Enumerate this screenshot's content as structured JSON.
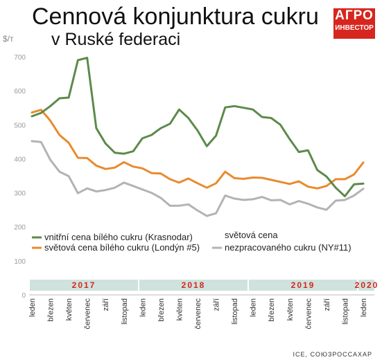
{
  "header": {
    "title": "Cennová konjunktura cukru",
    "subtitle": "v Ruské federaci",
    "unit": "$/т",
    "logo_top": "АГРО",
    "logo_bottom": "ИНВЕСТОР",
    "source": "ICE, СОЮЗРОССАХАР"
  },
  "colors": {
    "green": "#5c8a4a",
    "orange": "#e98a2d",
    "gray": "#b3b3b3",
    "year_band": "#cfe2dd",
    "year_text": "#d7261e"
  },
  "chart_data": {
    "type": "line",
    "title": "Cennová konjunktura cukru v Ruské federaci",
    "ylabel": "$/т",
    "ylim": [
      0,
      700
    ],
    "yticks": [
      0,
      100,
      200,
      300,
      400,
      500,
      600,
      700
    ],
    "x_labels": [
      "leden",
      "březen",
      "květen",
      "červenec",
      "září",
      "listopad",
      "leden",
      "březen",
      "květen",
      "červenec",
      "září",
      "listopad",
      "leden",
      "březen",
      "květen",
      "červenec",
      "září",
      "listopad",
      "leden"
    ],
    "years": [
      "2017",
      "2018",
      "2019",
      "2020"
    ],
    "grid": false,
    "series": [
      {
        "name": "vnitřní cena bílého cukru (Krasnodar)",
        "color": "#5c8a4a",
        "values": [
          525,
          535,
          555,
          578,
          580,
          690,
          697,
          490,
          445,
          418,
          415,
          422,
          460,
          470,
          490,
          503,
          545,
          520,
          483,
          437,
          468,
          551,
          555,
          550,
          545,
          523,
          520,
          500,
          458,
          420,
          425,
          367,
          348,
          315,
          290,
          325,
          327
        ]
      },
      {
        "name": "světová cena bílého cukru (Londýn #5)",
        "color": "#e98a2d",
        "values": [
          536,
          544,
          512,
          470,
          447,
          403,
          402,
          380,
          370,
          374,
          390,
          377,
          372,
          358,
          357,
          340,
          330,
          342,
          328,
          315,
          328,
          362,
          343,
          341,
          345,
          344,
          338,
          332,
          326,
          334,
          318,
          313,
          320,
          340,
          340,
          354,
          389
        ]
      },
      {
        "name": "světová cena nezpracovaného cukru (NY#11)",
        "color": "#b3b3b3",
        "values": [
          452,
          449,
          397,
          362,
          349,
          299,
          313,
          304,
          308,
          315,
          330,
          320,
          310,
          300,
          285,
          262,
          262,
          266,
          248,
          232,
          240,
          292,
          283,
          279,
          281,
          288,
          278,
          279,
          266,
          276,
          268,
          257,
          250,
          277,
          279,
          292,
          312
        ]
      }
    ]
  },
  "legend": {
    "item1": "vnitřní cena bílého cukru (Krasnodar)",
    "item2": "světová cena bílého cukru (Londýn #5)",
    "item3_line1": "světová cena",
    "item3_line2": "nezpracovaného cukru (NY#11)"
  }
}
